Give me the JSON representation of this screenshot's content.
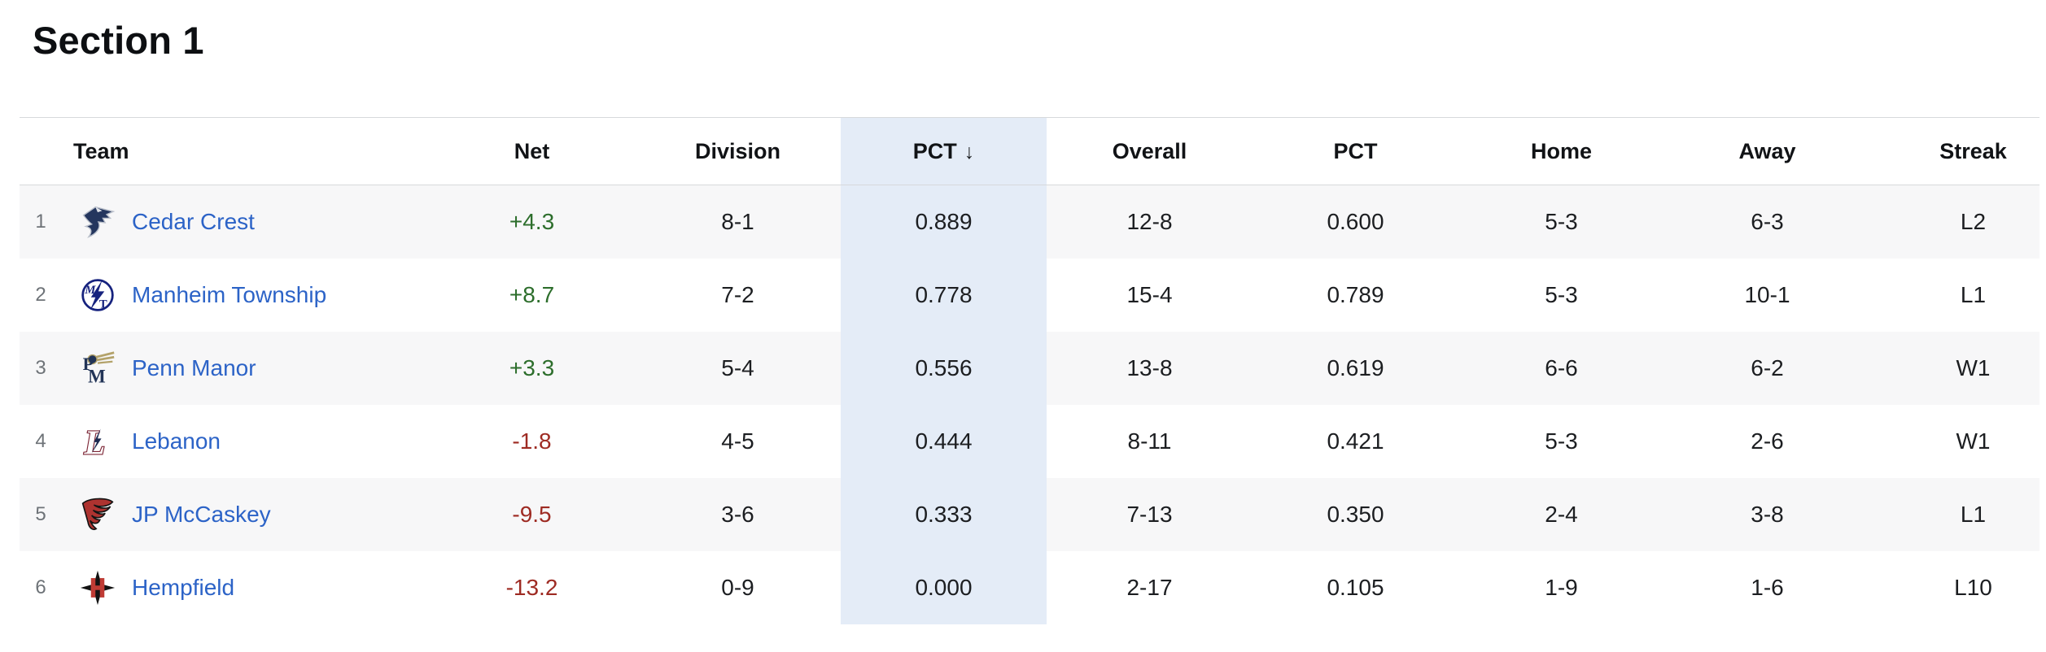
{
  "page": {
    "title": "Section 1"
  },
  "colors": {
    "team_link": "#2c63c7",
    "net_positive": "#2d6e2c",
    "net_negative": "#9e2b23",
    "sorted_column_bg": "#e4ecf7",
    "row_stripe_bg": "#f7f7f8",
    "header_text": "#111316",
    "rank_text": "#6e7378"
  },
  "table": {
    "columns": [
      {
        "label": "Team",
        "sorted": false
      },
      {
        "label": "Net",
        "sorted": false
      },
      {
        "label": "Division",
        "sorted": false
      },
      {
        "label": "PCT",
        "sorted": true,
        "sort_icon": "↓"
      },
      {
        "label": "Overall",
        "sorted": false
      },
      {
        "label": "PCT",
        "sorted": false
      },
      {
        "label": "Home",
        "sorted": false
      },
      {
        "label": "Away",
        "sorted": false
      },
      {
        "label": "Streak",
        "sorted": false
      }
    ],
    "rows": [
      {
        "rank": "1",
        "team": "Cedar Crest",
        "logo": "cedar-crest-falcon-logo",
        "net": "+4.3",
        "net_trend": "pos",
        "division": "8-1",
        "pct": "0.889",
        "overall": "12-8",
        "overall_pct": "0.600",
        "home": "5-3",
        "away": "6-3",
        "streak": "L2"
      },
      {
        "rank": "2",
        "team": "Manheim Township",
        "logo": "manheim-township-mt-circle-logo",
        "net": "+8.7",
        "net_trend": "pos",
        "division": "7-2",
        "pct": "0.778",
        "overall": "15-4",
        "overall_pct": "0.789",
        "home": "5-3",
        "away": "10-1",
        "streak": "L1"
      },
      {
        "rank": "3",
        "team": "Penn Manor",
        "logo": "penn-manor-comet-pm-logo",
        "net": "+3.3",
        "net_trend": "pos",
        "division": "5-4",
        "pct": "0.556",
        "overall": "13-8",
        "overall_pct": "0.619",
        "home": "6-6",
        "away": "6-2",
        "streak": "W1"
      },
      {
        "rank": "4",
        "team": "Lebanon",
        "logo": "lebanon-l-bolt-logo",
        "net": "-1.8",
        "net_trend": "neg",
        "division": "4-5",
        "pct": "0.444",
        "overall": "8-11",
        "overall_pct": "0.421",
        "home": "5-3",
        "away": "2-6",
        "streak": "W1"
      },
      {
        "rank": "5",
        "team": "JP McCaskey",
        "logo": "jp-mccaskey-tornado-logo",
        "net": "-9.5",
        "net_trend": "neg",
        "division": "3-6",
        "pct": "0.333",
        "overall": "7-13",
        "overall_pct": "0.350",
        "home": "2-4",
        "away": "3-8",
        "streak": "L1"
      },
      {
        "rank": "6",
        "team": "Hempfield",
        "logo": "hempfield-diamond-h-logo",
        "net": "-13.2",
        "net_trend": "neg",
        "division": "0-9",
        "pct": "0.000",
        "overall": "2-17",
        "overall_pct": "0.105",
        "home": "1-9",
        "away": "1-6",
        "streak": "L10"
      }
    ]
  }
}
